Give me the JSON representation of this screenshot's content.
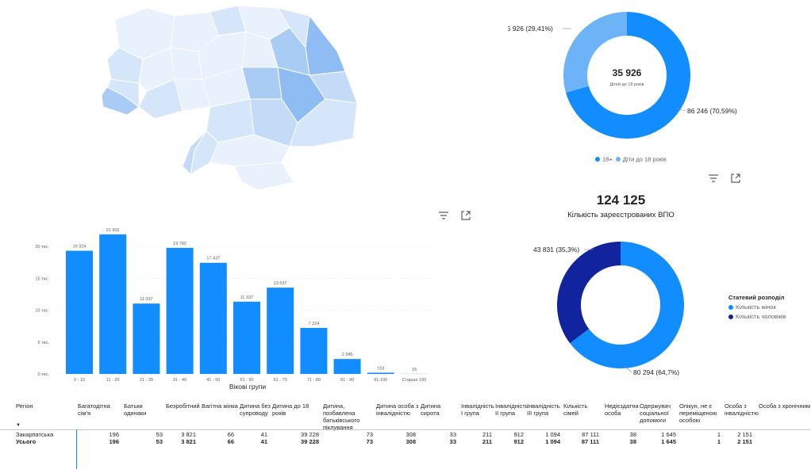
{
  "map": {
    "regions_count": 24,
    "colors": [
      "#e8f1fc",
      "#d6e6fa",
      "#c4dbf8",
      "#a9ccf5",
      "#8fbcf2"
    ]
  },
  "donut1": {
    "center_value": "35 926",
    "center_label": "Дітей до 18 років",
    "label_small": "35 926 (29,41%)",
    "label_large": "86 246 (70,59%)",
    "legend": [
      {
        "label": "18+",
        "color": "#118dff"
      },
      {
        "label": "Діти до 18 років",
        "color": "#6cb4f7"
      }
    ]
  },
  "kpi": {
    "value": "124 125",
    "label": "Кількість зареєстрованих ВПО"
  },
  "toolbar": {
    "filter_icon": "filter-icon",
    "focus_icon": "focus-mode-icon"
  },
  "chart_data": [
    {
      "type": "bar",
      "categories": [
        "0 - 10",
        "11 - 20",
        "21 - 30",
        "31 - 40",
        "41 - 50",
        "51 - 60",
        "61 - 70",
        "71 - 80",
        "81 - 90",
        "91-100",
        "Старше 100"
      ],
      "values": [
        19324,
        21902,
        11037,
        19782,
        17437,
        11337,
        13537,
        7224,
        2345,
        193,
        15
      ],
      "data_labels": [
        "19 324",
        "21 902",
        "11 037",
        "19 782",
        "17 437",
        "11 337",
        "13 537",
        "7 224",
        "2 345",
        "193",
        "15"
      ],
      "xlabel": "Вікові групи",
      "ylabel": "",
      "ylim": [
        0,
        22000
      ],
      "yticks": [
        0,
        5000,
        10000,
        15000,
        20000
      ],
      "ytick_labels": [
        "0 тис.",
        "5 тис.",
        "10 тис.",
        "15 тис.",
        "20 тис."
      ],
      "color": "#118dff"
    },
    {
      "type": "pie",
      "labels": [
        "18+",
        "Діти до 18 років"
      ],
      "values": [
        86246,
        35926
      ],
      "colors": [
        "#118dff",
        "#6cb4f7"
      ]
    },
    {
      "type": "pie",
      "title": "Статевий розподіл",
      "labels": [
        "Кількість жінок",
        "Кількість чоловіків"
      ],
      "values": [
        80294,
        43831
      ],
      "colors": [
        "#118dff",
        "#12239e"
      ]
    }
  ],
  "donut2": {
    "label_small": "43 831 (35,3%)",
    "label_large": "80 294 (64,7%)",
    "legend_title": "Статевий розподіл",
    "legend": [
      {
        "label": "Кількість жінок",
        "color": "#118dff"
      },
      {
        "label": "Кількість чоловіків",
        "color": "#12239e"
      }
    ]
  },
  "table": {
    "headers": [
      "Регіон",
      "Багатодітна сім'я",
      "Батьки одинаки",
      "Безробітний",
      "Вагітна жінка",
      "Дитина без супроводу",
      "Дитина до 18 років",
      "Дитина, позбавлена батьківського піклування",
      "Дитина особа з інвалідністю",
      "Дитина сирота",
      "Інвалідність І група",
      "Інвалідність ІІ група",
      "Інвалідність ІІІ група",
      "Кількість сімей",
      "Недієздатна особа",
      "Одержувач соціальної допомоги",
      "Опікун, не є переміщеною особою",
      "Особа з інвалідністю",
      "Особа з хронічним"
    ],
    "rows": [
      {
        "name": "Закарпатська",
        "values": [
          "196",
          "53",
          "3 821",
          "66",
          "41",
          "39 228",
          "73",
          "308",
          "33",
          "211",
          "912",
          "1 094",
          "87 111",
          "38",
          "1 645",
          "1",
          "2 151"
        ]
      }
    ],
    "total": {
      "name": "Усього",
      "values": [
        "196",
        "53",
        "3 821",
        "66",
        "41",
        "39 228",
        "73",
        "308",
        "33",
        "211",
        "912",
        "1 094",
        "87 111",
        "38",
        "1 645",
        "1",
        "2 151"
      ]
    }
  }
}
